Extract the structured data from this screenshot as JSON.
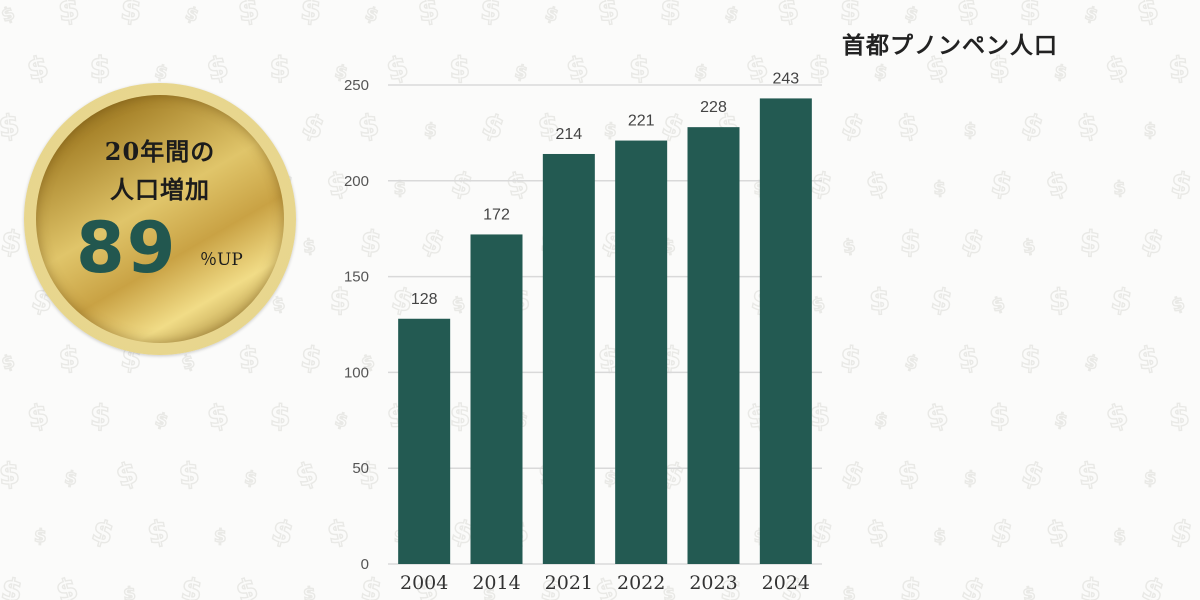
{
  "title": "首都プノンペン人口",
  "badge": {
    "line1": "20年間の",
    "line2": "人口増加",
    "number": "89",
    "suffix": "％UP"
  },
  "chart_data": {
    "type": "bar",
    "categories": [
      "2004",
      "2014",
      "2021",
      "2022",
      "2023",
      "2024"
    ],
    "values": [
      128,
      172,
      214,
      221,
      228,
      243
    ],
    "yticks": [
      0,
      50,
      100,
      150,
      200,
      250
    ],
    "ylim": [
      0,
      250
    ],
    "grid": true,
    "data_labels": true,
    "bar_color": "#235a52",
    "grid_color": "#d9d9d9"
  },
  "colors": {
    "background": "#fbfbfa",
    "pattern": "#e9e9e6",
    "accent_green": "#22574f",
    "gold": "#c9a244"
  },
  "background_icon": "dollar-sign-icon"
}
